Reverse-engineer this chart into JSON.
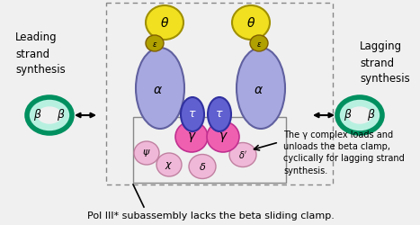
{
  "bg_color": "#f0f0f0",
  "border_color": "#b0b0b0",
  "title_text": "Pol III* subassembly lacks the beta sliding clamp.",
  "leading_text": "Leading\nstrand\nsynthesis",
  "lagging_text": "Lagging\nstrand\nsynthesis",
  "annotation_text": "The γ complex loads and\nunloads the beta clamp,\ncyclically for lagging strand\nsynthesis.",
  "alpha_color": "#a8a8e0",
  "alpha_edge": "#6060a0",
  "tau_color": "#6060d0",
  "tau_edge": "#3030a0",
  "yellow_color": "#f0e020",
  "yellow_edge": "#a09000",
  "epsilon_color": "#b0a000",
  "epsilon_edge": "#806000",
  "gamma_color": "#f060b0",
  "gamma_edge": "#c03090",
  "small_color": "#f0b8d8",
  "small_edge": "#c080a0",
  "beta_fill": "#b8f0e0",
  "beta_edge": "#009060",
  "beta_inner": "#e8f8f4"
}
